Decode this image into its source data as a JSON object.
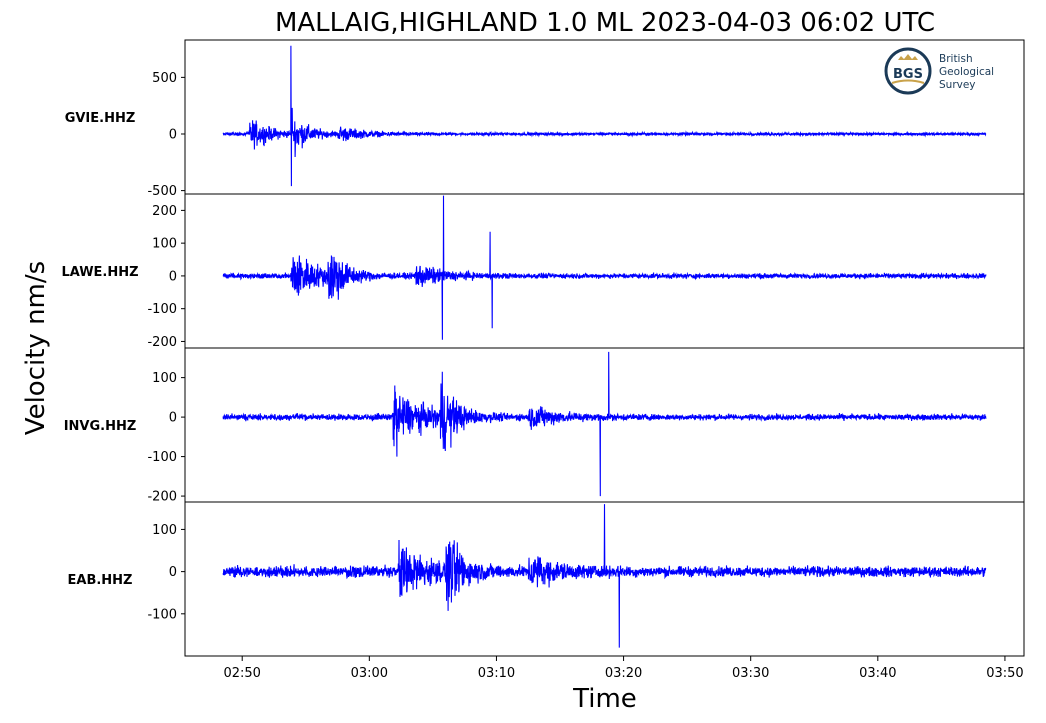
{
  "chart_data": {
    "type": "line",
    "title": "MALLAIG,HIGHLAND 1.0 ML   2023-04-03 06:02 UTC",
    "ylabel": "Velocity nm/s",
    "xlabel": "Time",
    "x_ticks": [
      "02:50",
      "03:00",
      "03:10",
      "03:20",
      "03:30",
      "03:40",
      "03:50"
    ],
    "x_range_seconds": [
      "02:45:30",
      "03:51:30"
    ],
    "data_range_seconds": [
      "02:48:30",
      "03:48:30"
    ],
    "line_color": "#0000ff",
    "grid": false,
    "panels": [
      {
        "station": "GVIE.HHZ",
        "ylim": [
          -530,
          830
        ],
        "yticks": [
          500,
          0,
          -500
        ],
        "ytick_labels": [
          "500",
          "0",
          "-500"
        ],
        "noise": 8,
        "phases": [
          {
            "onset_s": 2.0,
            "amp": 95,
            "decay": 16
          },
          {
            "onset_s": 5.5,
            "amp": 105,
            "decay": 12
          },
          {
            "onset_s": 9.0,
            "amp": 40,
            "decay": 20
          }
        ],
        "peaks": [
          {
            "time": "02:53:50",
            "value": 780
          },
          {
            "time": "02:53:52",
            "value": -460
          },
          {
            "time": "02:53:56",
            "value": 230
          }
        ]
      },
      {
        "station": "LAWE.HHZ",
        "ylim": [
          -220,
          250
        ],
        "yticks": [
          200,
          100,
          0,
          -100,
          -200
        ],
        "ytick_labels": [
          "200",
          "100",
          "0",
          "-100",
          "-200"
        ],
        "noise": 5,
        "phases": [
          {
            "onset_s": 5.3,
            "amp": 55,
            "decay": 20
          },
          {
            "onset_s": 8.2,
            "amp": 75,
            "decay": 10
          },
          {
            "onset_s": 15.0,
            "amp": 25,
            "decay": 20
          }
        ],
        "peaks": [
          {
            "time": "03:05:50",
            "value": 245
          },
          {
            "time": "03:05:45",
            "value": -195
          },
          {
            "time": "03:09:30",
            "value": 135
          },
          {
            "time": "03:09:40",
            "value": -160
          }
        ]
      },
      {
        "station": "INVG.HHZ",
        "ylim": [
          -215,
          175
        ],
        "yticks": [
          100,
          0,
          -100,
          -200
        ],
        "ytick_labels": [
          "100",
          "0",
          "-100",
          "-200"
        ],
        "noise": 5,
        "phases": [
          {
            "onset_s": 13.3,
            "amp": 45,
            "decay": 25
          },
          {
            "onset_s": 17.0,
            "amp": 70,
            "decay": 10
          },
          {
            "onset_s": 24.0,
            "amp": 20,
            "decay": 20
          }
        ],
        "peaks": [
          {
            "time": "03:02:00",
            "value": 80
          },
          {
            "time": "03:02:10",
            "value": -100
          },
          {
            "time": "03:18:50",
            "value": 165
          },
          {
            "time": "03:18:10",
            "value": -200
          }
        ]
      },
      {
        "station": "EAB.HHZ",
        "ylim": [
          -200,
          165
        ],
        "yticks": [
          100,
          0,
          -100
        ],
        "ytick_labels": [
          "100",
          "0",
          "-100"
        ],
        "noise": 8,
        "phases": [
          {
            "onset_s": 13.7,
            "amp": 40,
            "decay": 25
          },
          {
            "onset_s": 17.5,
            "amp": 65,
            "decay": 10
          },
          {
            "onset_s": 24.0,
            "amp": 25,
            "decay": 20
          }
        ],
        "peaks": [
          {
            "time": "03:02:20",
            "value": 75
          },
          {
            "time": "03:02:25",
            "value": -60
          },
          {
            "time": "03:18:30",
            "value": 160
          },
          {
            "time": "03:19:40",
            "value": -180
          }
        ]
      }
    ]
  },
  "logo": {
    "mark": "BGS",
    "name_lines": [
      "British",
      "Geological",
      "Survey"
    ],
    "colors": {
      "navy": "#1b3a57",
      "gold": "#c9a24a"
    }
  }
}
